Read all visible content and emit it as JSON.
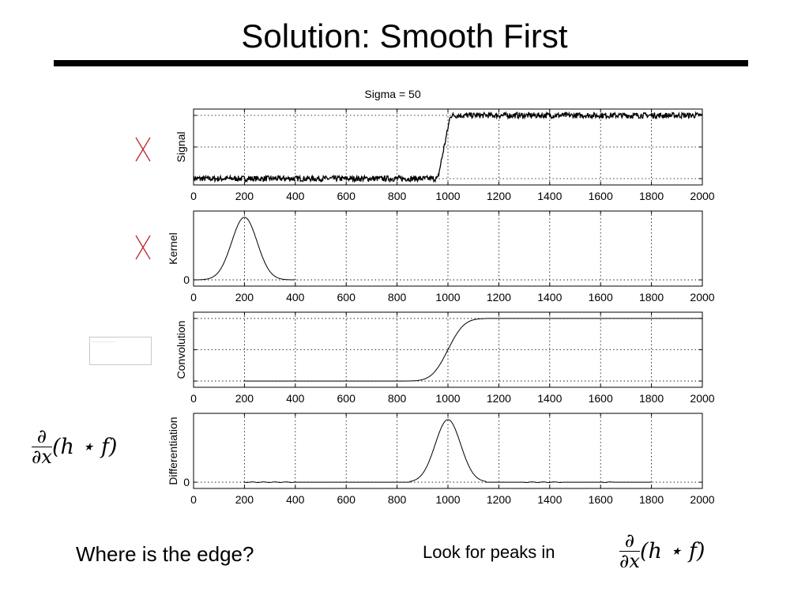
{
  "slide": {
    "title": "Solution:  Smooth First",
    "question": "Where is the edge?",
    "hint": "Look for peaks in",
    "formula_left": "∂/∂x (h ⋆ f)",
    "formula_right": "∂/∂x (h ⋆ f)"
  },
  "chart_data": [
    {
      "type": "line",
      "title": "Sigma = 50",
      "ylabel": "Signal",
      "xlim": [
        0,
        2000
      ],
      "ylim": [
        -1.2,
        1.2
      ],
      "xticks": [
        0,
        200,
        400,
        600,
        800,
        1000,
        1200,
        1400,
        1600,
        1800,
        2000
      ],
      "grid": true,
      "series": [
        {
          "x": [
            0,
            960,
            1010,
            2000
          ],
          "y": [
            -1,
            -1,
            1,
            1
          ],
          "style": "noisy step"
        }
      ]
    },
    {
      "type": "line",
      "ylabel": "Kernel",
      "xlim": [
        0,
        2000
      ],
      "ylim": [
        -0.1,
        1.1
      ],
      "xticks": [
        0,
        200,
        400,
        600,
        800,
        1000,
        1200,
        1400,
        1600,
        1800,
        2000
      ],
      "yticks": [
        0
      ],
      "grid": true,
      "series": [
        {
          "x": [
            0,
            100,
            150,
            200,
            250,
            300,
            400
          ],
          "y": [
            0,
            0.13,
            0.6,
            1,
            0.6,
            0.13,
            0
          ],
          "style": "gaussian centered at 200, sigma 50"
        }
      ]
    },
    {
      "type": "line",
      "ylabel": "Convolution",
      "xlim": [
        0,
        2000
      ],
      "ylim": [
        -1.2,
        1.2
      ],
      "xticks": [
        0,
        200,
        400,
        600,
        800,
        1000,
        1200,
        1400,
        1600,
        1800,
        2000
      ],
      "grid": true,
      "series": [
        {
          "x": [
            200,
            850,
            900,
            950,
            1000,
            1050,
            1100,
            1150,
            2000
          ],
          "y": [
            -1,
            -1,
            -0.9,
            -0.6,
            0,
            0.6,
            0.9,
            1,
            1
          ],
          "style": "smoothed step"
        }
      ]
    },
    {
      "type": "line",
      "ylabel": "Differentiation",
      "xlim": [
        0,
        2000
      ],
      "ylim": [
        -0.1,
        1.1
      ],
      "xticks": [
        0,
        200,
        400,
        600,
        800,
        1000,
        1200,
        1400,
        1600,
        1800,
        2000
      ],
      "yticks": [
        0
      ],
      "grid": true,
      "series": [
        {
          "x": [
            200,
            850,
            900,
            950,
            1000,
            1050,
            1100,
            1150,
            1800
          ],
          "y": [
            0,
            0,
            0.13,
            0.6,
            1,
            0.6,
            0.13,
            0,
            0
          ],
          "style": "gaussian peak at 1000"
        }
      ]
    }
  ],
  "colors": {
    "marker_x": "#c0282d",
    "axes": "#000000",
    "grid": "#000000"
  },
  "icons": [
    "cross-mark-icon",
    "cross-mark-icon",
    "placeholder-thumbnail"
  ]
}
